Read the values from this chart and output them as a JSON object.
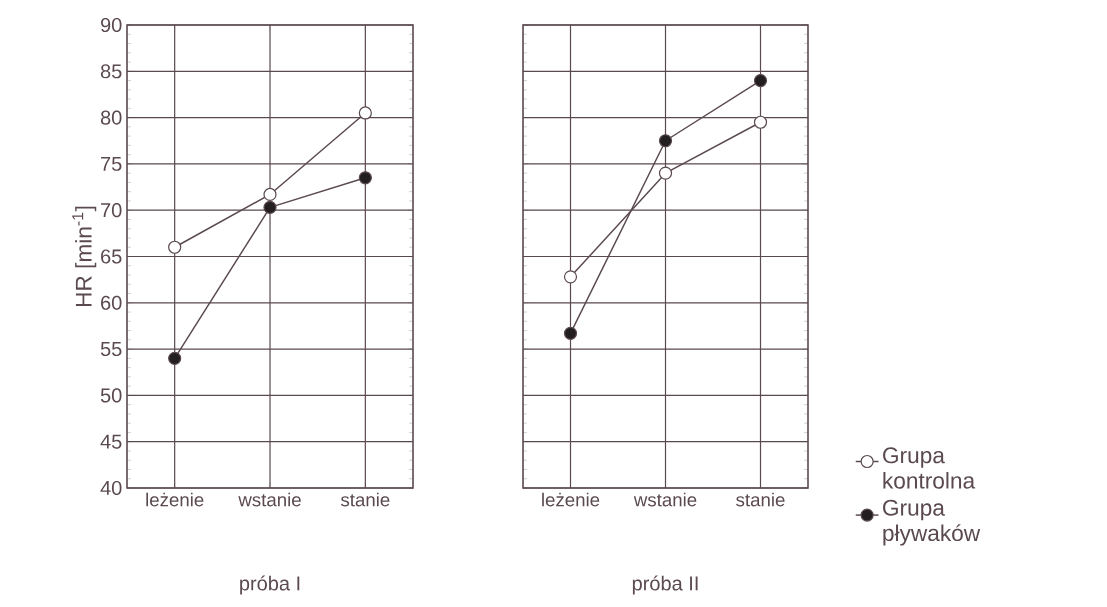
{
  "chart_data": [
    {
      "type": "line",
      "categories": [
        "leżenie",
        "wstanie",
        "stanie"
      ],
      "xlabel": "próba I",
      "ylabel": "HR [min$^{-1}$]",
      "ylim": [
        40,
        90
      ],
      "yticks": [
        40,
        45,
        50,
        55,
        60,
        65,
        70,
        75,
        80,
        85,
        90
      ],
      "grid": true,
      "marker": "circle",
      "line_style": "solid",
      "series": [
        {
          "color": "#ffffff",
          "values": [
            66,
            71.7,
            80.5
          ]
        },
        {
          "color": "#231f20",
          "values": [
            54,
            70.3,
            73.5
          ]
        }
      ]
    },
    {
      "type": "line",
      "categories": [
        "leżenie",
        "wstanie",
        "stanie"
      ],
      "xlabel": "próba II",
      "ylim": [
        40,
        90
      ],
      "yticks": [
        40,
        45,
        50,
        55,
        60,
        65,
        70,
        75,
        80,
        85,
        90
      ],
      "grid": true,
      "marker": "circle",
      "line_style": "solid",
      "tick_labels": "x",
      "legend": "right",
      "series": [
        {
          "name": "Grupa kontrolna",
          "color": "#ffffff",
          "values": [
            62.8,
            74,
            79.5
          ]
        },
        {
          "name": "Grupa pływaków",
          "color": "#231f20",
          "values": [
            56.7,
            77.5,
            84
          ]
        }
      ]
    }
  ]
}
